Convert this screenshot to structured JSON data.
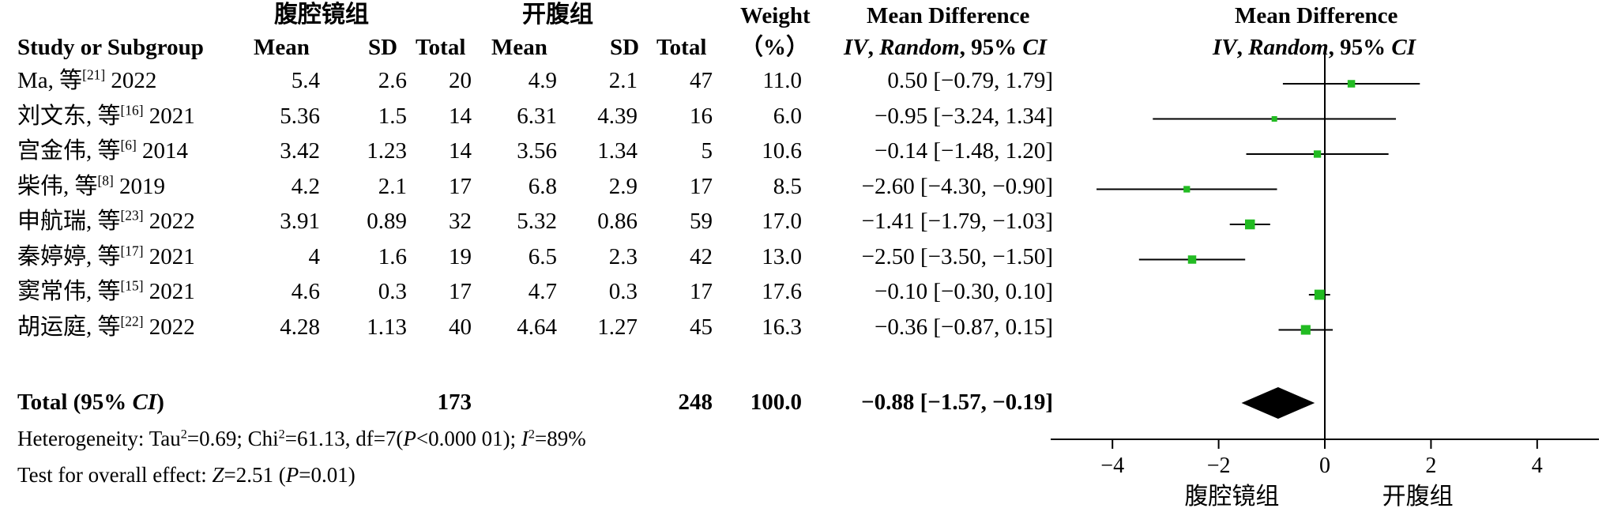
{
  "headers": {
    "group1_name": "腹腔镜组",
    "group2_name": "开腹组",
    "study_col": "Study or Subgroup",
    "mean": "Mean",
    "sd": "SD",
    "total": "Total",
    "weight_line1": "Weight",
    "weight_line2": "（%）",
    "md_col_line1": "Mean Difference",
    "md_col_line2a": "IV",
    "md_col_line2b": ", ",
    "md_col_line2c": "Random",
    "md_col_line2d": ", 95% ",
    "md_col_line2e": "CI",
    "plot_title_line1": "Mean Difference",
    "plot_title_line2a": "IV",
    "plot_title_line2b": ", ",
    "plot_title_line2c": "Random",
    "plot_title_line2d": ", 95% ",
    "plot_title_line2e": "CI"
  },
  "studies": [
    {
      "name": "Ma, 等",
      "ref": "[21]",
      "year": "2022",
      "m1": "5.4",
      "sd1": "2.6",
      "n1": "20",
      "m2": "4.9",
      "sd2": "2.1",
      "n2": "47",
      "weight": "11.0",
      "ci_text": "0.50 [−0.79, 1.79]"
    },
    {
      "name": "刘文东, 等",
      "ref": "[16]",
      "year": "2021",
      "m1": "5.36",
      "sd1": "1.5",
      "n1": "14",
      "m2": "6.31",
      "sd2": "4.39",
      "n2": "16",
      "weight": "6.0",
      "ci_text": "−0.95 [−3.24, 1.34]"
    },
    {
      "name": "宫金伟, 等",
      "ref": "[6]",
      "year": "2014",
      "m1": "3.42",
      "sd1": "1.23",
      "n1": "14",
      "m2": "3.56",
      "sd2": "1.34",
      "n2": "5",
      "weight": "10.6",
      "ci_text": "−0.14 [−1.48, 1.20]"
    },
    {
      "name": "柴伟, 等",
      "ref": "[8]",
      "year": "2019",
      "m1": "4.2",
      "sd1": "2.1",
      "n1": "17",
      "m2": "6.8",
      "sd2": "2.9",
      "n2": "17",
      "weight": "8.5",
      "ci_text": "−2.60 [−4.30, −0.90]"
    },
    {
      "name": "申航瑞, 等",
      "ref": "[23]",
      "year": "2022",
      "m1": "3.91",
      "sd1": "0.89",
      "n1": "32",
      "m2": "5.32",
      "sd2": "0.86",
      "n2": "59",
      "weight": "17.0",
      "ci_text": "−1.41 [−1.79, −1.03]"
    },
    {
      "name": "秦婷婷, 等",
      "ref": "[17]",
      "year": "2021",
      "m1": "4",
      "sd1": "1.6",
      "n1": "19",
      "m2": "6.5",
      "sd2": "2.3",
      "n2": "42",
      "weight": "13.0",
      "ci_text": "−2.50 [−3.50, −1.50]"
    },
    {
      "name": "窦常伟, 等",
      "ref": "[15]",
      "year": "2021",
      "m1": "4.6",
      "sd1": "0.3",
      "n1": "17",
      "m2": "4.7",
      "sd2": "0.3",
      "n2": "17",
      "weight": "17.6",
      "ci_text": "−0.10 [−0.30, 0.10]"
    },
    {
      "name": "胡运庭, 等",
      "ref": "[22]",
      "year": "2022",
      "m1": "4.28",
      "sd1": "1.13",
      "n1": "40",
      "m2": "4.64",
      "sd2": "1.27",
      "n2": "45",
      "weight": "16.3",
      "ci_text": "−0.36 [−0.87, 0.15]"
    }
  ],
  "total": {
    "label_a": "Total (95% ",
    "label_b": "CI",
    "label_c": ")",
    "n1": "173",
    "n2": "248",
    "weight": "100.0",
    "ci_text": "−0.88 [−1.57, −0.19]"
  },
  "heterogeneity": {
    "a": "Heterogeneity: Tau",
    "sup1": "2",
    "b": "=0.69; Chi",
    "sup2": "2",
    "c": "=61.13, df=7(",
    "d": "P",
    "e": "<0.000 01); ",
    "f": "I",
    "sup3": "2",
    "g": "=89%"
  },
  "overall": {
    "a": "Test for overall effect: ",
    "b": "Z",
    "c": "=2.51 (",
    "d": "P",
    "e": "=0.01)"
  },
  "axis_labels": {
    "left": "腹腔镜组",
    "right": "开腹组"
  },
  "colors": {
    "marker": "#22bb22",
    "diamond": "#000000",
    "lines": "#000000"
  },
  "chart_data": {
    "type": "forest",
    "x_range": [
      -5,
      5
    ],
    "ticks": [
      -4,
      -2,
      0,
      2,
      4
    ],
    "tick_labels": [
      "−4",
      "−2",
      "0",
      "2",
      "4"
    ],
    "studies": [
      {
        "estimate": 0.5,
        "lower": -0.79,
        "upper": 1.79,
        "weight": 11.0
      },
      {
        "estimate": -0.95,
        "lower": -3.24,
        "upper": 1.34,
        "weight": 6.0
      },
      {
        "estimate": -0.14,
        "lower": -1.48,
        "upper": 1.2,
        "weight": 10.6
      },
      {
        "estimate": -2.6,
        "lower": -4.3,
        "upper": -0.9,
        "weight": 8.5
      },
      {
        "estimate": -1.41,
        "lower": -1.79,
        "upper": -1.03,
        "weight": 17.0
      },
      {
        "estimate": -2.5,
        "lower": -3.5,
        "upper": -1.5,
        "weight": 13.0
      },
      {
        "estimate": -0.1,
        "lower": -0.3,
        "upper": 0.1,
        "weight": 17.6
      },
      {
        "estimate": -0.36,
        "lower": -0.87,
        "upper": 0.15,
        "weight": 16.3
      }
    ],
    "pooled": {
      "estimate": -0.88,
      "lower": -1.57,
      "upper": -0.19
    }
  }
}
